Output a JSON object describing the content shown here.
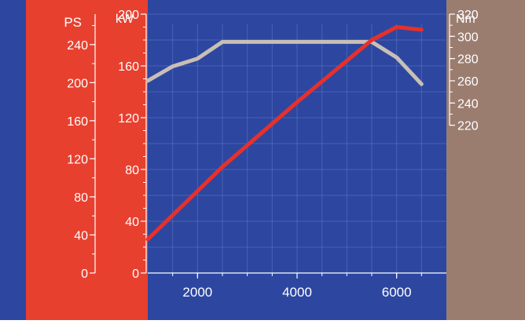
{
  "colors": {
    "left_margin": "#2d47a0",
    "ps_band": "#e8402f",
    "kw_band": "#e8402f",
    "plot_bg": "#2d47a0",
    "right_band": "#9b7d70",
    "grid": "#5e79c7",
    "power_line": "#e8302a",
    "torque_line": "#c9bfb5",
    "ps_text": "#ffffff",
    "kw_text": "#ffffff",
    "nm_text": "#ffffff",
    "x_text": "#ffffff"
  },
  "chart_data": {
    "type": "line",
    "x_range": [
      1000,
      7000
    ],
    "x_ticks": [
      2000,
      4000,
      6000
    ],
    "grid": true,
    "axes": {
      "ps": {
        "label": "PS",
        "ticks": [
          0,
          40,
          80,
          120,
          160,
          200,
          240
        ],
        "range": [
          0,
          272
        ]
      },
      "kw": {
        "label": "kW",
        "ticks": [
          0,
          40,
          80,
          120,
          160,
          200
        ],
        "range": [
          0,
          200
        ]
      },
      "nm": {
        "label": "Nm",
        "ticks": [
          220,
          240,
          260,
          280,
          300,
          320
        ],
        "range": [
          87,
          320
        ]
      }
    },
    "series": [
      {
        "name": "",
        "axis": "kw",
        "x": [
          1000,
          2500,
          4000,
          5500,
          6000,
          6500
        ],
        "y": [
          26,
          82,
          132,
          180,
          190,
          188
        ]
      },
      {
        "name": "",
        "axis": "nm",
        "x": [
          1000,
          1500,
          2000,
          2500,
          3000,
          4000,
          5000,
          5500,
          6000,
          6500
        ],
        "y": [
          260,
          273,
          280,
          295,
          295,
          295,
          295,
          295,
          281,
          257
        ]
      }
    ]
  }
}
